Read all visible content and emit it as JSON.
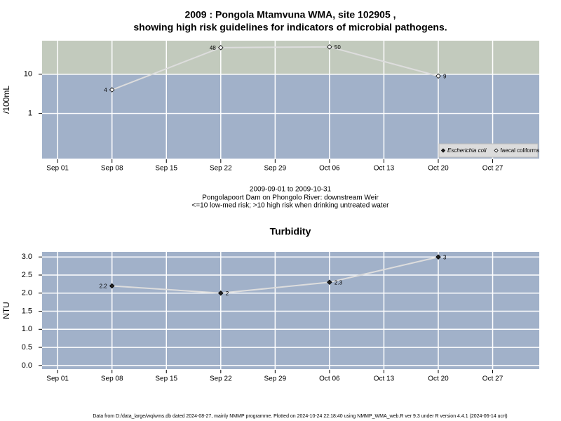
{
  "title": [
    "2009 : Pongola Mtamvuna WMA, site 102905 ,",
    "showing high risk guidelines for indicators of microbial pathogens."
  ],
  "subtitle": [
    "2009-09-01 to 2009-10-31",
    "Pongolapoort Dam on Phongolo River: downstream Weir",
    "<=10 low-med risk; >10 high risk when drinking untreated water"
  ],
  "footer": "Data from D:/data_large/wq/wms.db dated 2024-08-27, mainly NMMP programme. Plotted on 2024-10-24 22:18:40 using NMMP_WMA_web.R ver 9.3 under R version 4.4.1 (2024-06-14 ucrt)",
  "chart_data": [
    {
      "type": "line",
      "ylabel": "/100mL",
      "log_scale": true,
      "grid": true,
      "threshold": 10,
      "above_color": "#c2cabd",
      "below_color": "#a1b1c9",
      "line_color": "#dddddd",
      "legend": "bottom-right",
      "x": [
        "2009-09-08",
        "2009-09-22",
        "2009-10-06",
        "2009-10-20"
      ],
      "xlim": [
        "2009-08-30",
        "2009-11-02"
      ],
      "xticks": [
        {
          "value": "2009-09-01",
          "label": "Sep 01"
        },
        {
          "value": "2009-09-08",
          "label": "Sep 08"
        },
        {
          "value": "2009-09-15",
          "label": "Sep 15"
        },
        {
          "value": "2009-09-22",
          "label": "Sep 22"
        },
        {
          "value": "2009-09-29",
          "label": "Sep 29"
        },
        {
          "value": "2009-10-06",
          "label": "Oct 06"
        },
        {
          "value": "2009-10-13",
          "label": "Oct 13"
        },
        {
          "value": "2009-10-20",
          "label": "Oct 20"
        },
        {
          "value": "2009-10-27",
          "label": "Oct 27"
        }
      ],
      "ylim": [
        0.07,
        72
      ],
      "yticks": [
        1,
        10
      ],
      "series": [
        {
          "name": "Escherichia coli",
          "color": "#222222",
          "values": [
            null,
            null,
            null,
            null
          ]
        },
        {
          "name": "faecal coliforms",
          "color": "#ffffff",
          "values": [
            4,
            48,
            50,
            9
          ]
        }
      ]
    },
    {
      "type": "line",
      "title": "Turbidity",
      "ylabel": "NTU",
      "log_scale": false,
      "grid": true,
      "background": "#a1b1c9",
      "line_color": "#dddddd",
      "x": [
        "2009-09-08",
        "2009-09-22",
        "2009-10-06",
        "2009-10-20"
      ],
      "xlim": [
        "2009-08-30",
        "2009-11-02"
      ],
      "xticks": [
        {
          "value": "2009-09-01",
          "label": "Sep 01"
        },
        {
          "value": "2009-09-08",
          "label": "Sep 08"
        },
        {
          "value": "2009-09-15",
          "label": "Sep 15"
        },
        {
          "value": "2009-09-22",
          "label": "Sep 22"
        },
        {
          "value": "2009-09-29",
          "label": "Sep 29"
        },
        {
          "value": "2009-10-06",
          "label": "Oct 06"
        },
        {
          "value": "2009-10-13",
          "label": "Oct 13"
        },
        {
          "value": "2009-10-20",
          "label": "Oct 20"
        },
        {
          "value": "2009-10-27",
          "label": "Oct 27"
        }
      ],
      "ylim": [
        -0.1,
        3.14
      ],
      "yticks": [
        {
          "value": 0,
          "label": "0.0"
        },
        {
          "value": 0.5,
          "label": "0.5"
        },
        {
          "value": 1,
          "label": "1.0"
        },
        {
          "value": 1.5,
          "label": "1.5"
        },
        {
          "value": 2,
          "label": "2.0"
        },
        {
          "value": 2.5,
          "label": "2.5"
        },
        {
          "value": 3,
          "label": "3.0"
        }
      ],
      "series": [
        {
          "name": "Turbidity",
          "color": "#222222",
          "values": [
            2.2,
            2,
            2.3,
            3
          ]
        }
      ]
    }
  ]
}
